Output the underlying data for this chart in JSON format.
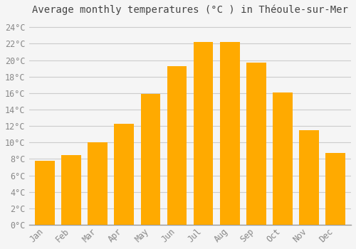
{
  "title": "Average monthly temperatures (°C ) in Théoule-sur-Mer",
  "months": [
    "Jan",
    "Feb",
    "Mar",
    "Apr",
    "May",
    "Jun",
    "Jul",
    "Aug",
    "Sep",
    "Oct",
    "Nov",
    "Dec"
  ],
  "values": [
    7.8,
    8.5,
    10.0,
    12.3,
    15.9,
    19.3,
    22.2,
    22.2,
    19.7,
    16.1,
    11.5,
    8.7
  ],
  "bar_color": "#FFAA00",
  "ylim": [
    0,
    25
  ],
  "background_color": "#f5f5f5",
  "plot_bg_color": "#f5f5f5",
  "grid_color": "#cccccc",
  "title_fontsize": 10,
  "tick_fontsize": 8.5,
  "tick_color": "#888888",
  "bar_width": 0.75
}
